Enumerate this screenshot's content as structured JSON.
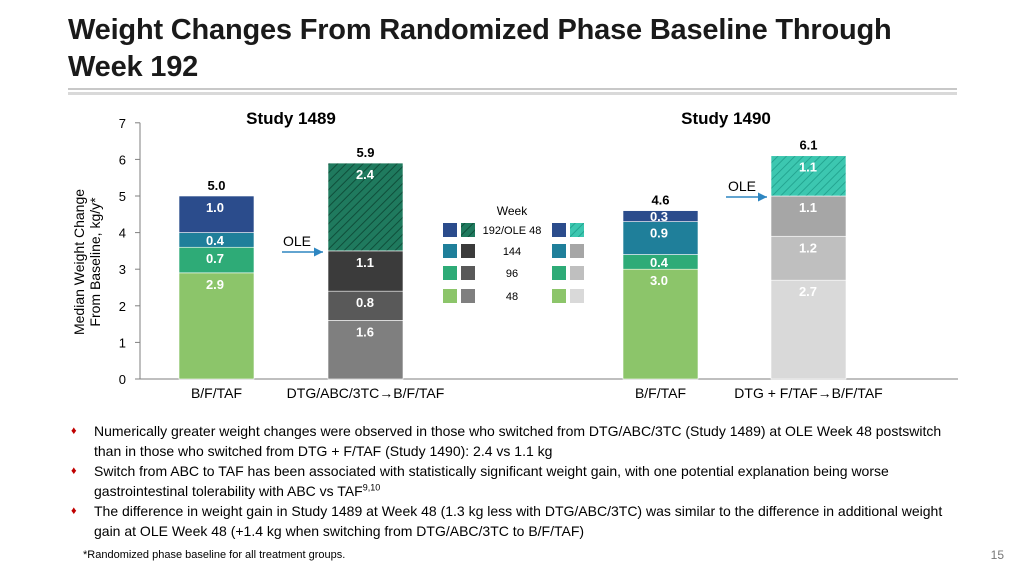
{
  "page": {
    "title": "Weight Changes From Randomized Phase Baseline Through Week 192",
    "page_number": "15",
    "footnote": "*Randomized phase baseline for all treatment groups."
  },
  "bullets": [
    {
      "text": "Numerically greater weight changes were observed in those who switched from DTG/ABC/3TC (Study 1489) at OLE Week 48 postswitch than in those who switched from DTG + F/TAF (Study 1490): 2.4 vs 1.1 kg"
    },
    {
      "text": "Switch from ABC to TAF has been associated with statistically significant weight gain, with one potential explanation being worse gastrointestinal tolerability with ABC vs TAF",
      "sup": "9,10"
    },
    {
      "text": "The difference in weight gain in Study 1489 at Week 48 (1.3 kg less with DTG/ABC/3TC) was similar to the difference in additional weight gain at OLE Week 48 (+1.4 kg when switching from DTG/ABC/3TC to B/F/TAF)"
    }
  ],
  "colors": {
    "w48_bft": "#8cc56a",
    "w96_bft": "#2eab77",
    "w144_bft": "#1f7f9a",
    "w192_bft": "#2b4c8c",
    "w48_cmp": "#7f7f7f",
    "w96_cmp": "#595959",
    "w144_cmp": "#3b3b3b",
    "ole48_cmp": "#1f7a5e",
    "w48_1490cmp": "#d9d9d9",
    "w96_1490cmp": "#bfbfbf",
    "w144_1490cmp": "#a6a6a6",
    "ole48_1490cmp": "#3cc7b0",
    "arrow": "#2e86c1"
  },
  "chart_data": {
    "type": "bar",
    "stacked": true,
    "ylabel": "Median Weight Change From Baseline, kg/y*",
    "ylim": [
      0,
      7
    ],
    "yticks": [
      0,
      1,
      2,
      3,
      4,
      5,
      6,
      7
    ],
    "group_titles": [
      "Study 1489",
      "Study 1490"
    ],
    "ole_label": "OLE",
    "legend_title": "Week",
    "legend_items": [
      "192/OLE 48",
      "144",
      "96",
      "48"
    ],
    "bars": [
      {
        "category": "B/F/TAF",
        "group": "Study 1489",
        "total": "5.0",
        "segments": [
          {
            "period": "48",
            "value": 2.9,
            "label": "2.9",
            "color_key": "w48_bft"
          },
          {
            "period": "96",
            "value": 0.7,
            "label": "0.7",
            "color_key": "w96_bft"
          },
          {
            "period": "144",
            "value": 0.4,
            "label": "0.4",
            "color_key": "w144_bft"
          },
          {
            "period": "192",
            "value": 1.0,
            "label": "1.0",
            "color_key": "w192_bft"
          }
        ]
      },
      {
        "category": "DTG/ABC/3TC→B/F/TAF",
        "group": "Study 1489",
        "total": "5.9",
        "segments": [
          {
            "period": "48",
            "value": 1.6,
            "label": "1.6",
            "color_key": "w48_cmp"
          },
          {
            "period": "96",
            "value": 0.8,
            "label": "0.8",
            "color_key": "w96_cmp"
          },
          {
            "period": "144",
            "value": 1.1,
            "label": "1.1",
            "color_key": "w144_cmp"
          },
          {
            "period": "OLE 48",
            "value": 2.4,
            "label": "2.4",
            "color_key": "ole48_cmp",
            "hatched": true
          }
        ]
      },
      {
        "category": "B/F/TAF",
        "group": "Study 1490",
        "total": "4.6",
        "segments": [
          {
            "period": "48",
            "value": 3.0,
            "label": "3.0",
            "color_key": "w48_bft"
          },
          {
            "period": "96",
            "value": 0.4,
            "label": "0.4",
            "color_key": "w96_bft"
          },
          {
            "period": "144",
            "value": 0.9,
            "label": "0.9",
            "color_key": "w144_bft"
          },
          {
            "period": "192",
            "value": 0.3,
            "label": "0.3",
            "color_key": "w192_bft"
          }
        ]
      },
      {
        "category": "DTG + F/TAF→B/F/TAF",
        "group": "Study 1490",
        "total": "6.1",
        "segments": [
          {
            "period": "48",
            "value": 2.7,
            "label": "2.7",
            "color_key": "w48_1490cmp"
          },
          {
            "period": "96",
            "value": 1.2,
            "label": "1.2",
            "color_key": "w96_1490cmp"
          },
          {
            "period": "144",
            "value": 1.1,
            "label": "1.1",
            "color_key": "w144_1490cmp"
          },
          {
            "period": "OLE 48",
            "value": 1.1,
            "label": "1.1",
            "color_key": "ole48_1490cmp",
            "hatched": true
          }
        ]
      }
    ]
  }
}
